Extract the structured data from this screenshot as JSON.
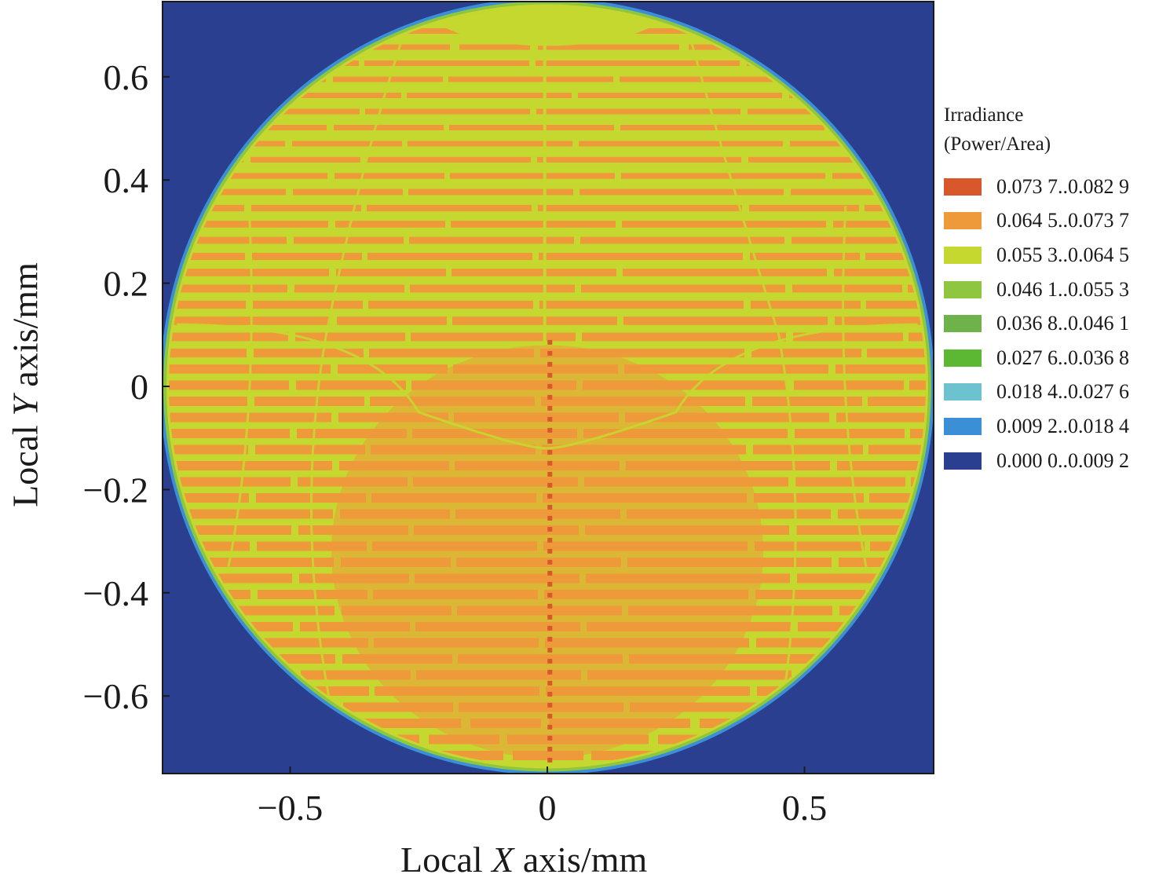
{
  "chart_data": {
    "type": "heatmap",
    "title": "",
    "xlabel_pre": "Local ",
    "xlabel_var": "X",
    "xlabel_post": " axis/mm",
    "ylabel_pre": "Local ",
    "ylabel_var": "Y",
    "ylabel_post": " axis/mm",
    "xlim": [
      -0.75,
      0.75
    ],
    "ylim": [
      -0.75,
      0.75
    ],
    "x_ticks": [
      -0.5,
      0,
      0.5
    ],
    "x_tick_labels": [
      "−0.5",
      "0",
      "0.5"
    ],
    "y_ticks": [
      0.6,
      0.4,
      0.2,
      0,
      -0.2,
      -0.4,
      -0.6
    ],
    "y_tick_labels": [
      "0.6",
      "0.4",
      "0.2",
      "0",
      "−0.2",
      "−0.4",
      "−0.6"
    ],
    "spot": {
      "shape": "circle",
      "center": [
        0,
        0
      ],
      "radius": 0.745
    },
    "background_level": "0.000 0..0.009 2",
    "legend": {
      "title_line1": "Irradiance",
      "title_line2": "(Power/Area)",
      "placement": "right",
      "items": [
        {
          "label": "0.073 7..0.082 9",
          "color": "#d9582b"
        },
        {
          "label": "0.064 5..0.073 7",
          "color": "#ee9a3a"
        },
        {
          "label": "0.055 3..0.064 5",
          "color": "#c5d82f"
        },
        {
          "label": "0.046 1..0.055 3",
          "color": "#8fc640"
        },
        {
          "label": "0.036 8..0.046 1",
          "color": "#6db34a"
        },
        {
          "label": "0.027 6..0.036 8",
          "color": "#5cb833"
        },
        {
          "label": "0.018 4..0.027 6",
          "color": "#6cc3cf"
        },
        {
          "label": "0.009 2..0.018 4",
          "color": "#3a8fd6"
        },
        {
          "label": "0.000 0..0.009 2",
          "color": "#2a3f8f"
        }
      ]
    }
  }
}
